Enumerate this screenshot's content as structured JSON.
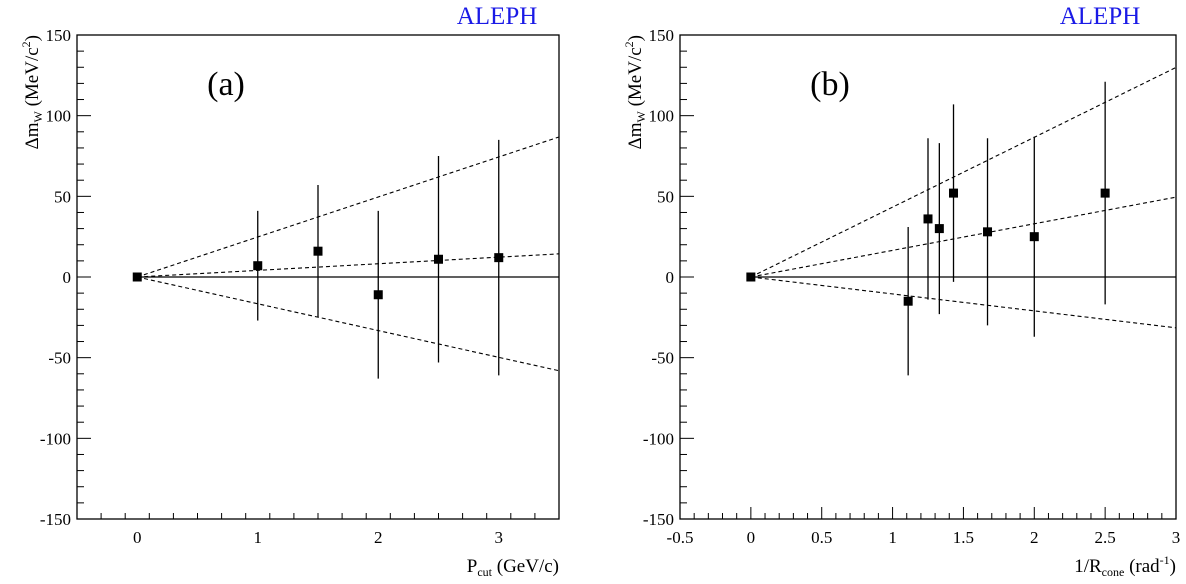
{
  "brand_color": "#1a1ae6",
  "chart_data": [
    {
      "type": "scatter",
      "id": "a",
      "brand": "ALEPH",
      "panel_label": "(a)",
      "ylabel_main": "Δm",
      "ylabel_sub": "W",
      "ylabel_rest": " (MeV/c",
      "ylabel_sup": "2",
      "ylabel_close": ")",
      "xlabel_main": "P",
      "xlabel_sub": "cut",
      "xlabel_rest": " (GeV/c)",
      "xlim": [
        -0.5,
        3.5
      ],
      "ylim": [
        -150,
        150
      ],
      "xticks": [
        0,
        1,
        2,
        3
      ],
      "xtick_labels": [
        "0",
        "1",
        "2",
        "3"
      ],
      "yticks": [
        -150,
        -100,
        -50,
        0,
        50,
        100,
        150
      ],
      "ytick_labels": [
        "-150",
        "-100",
        "-50",
        "0",
        "50",
        "100",
        "150"
      ],
      "grid": false,
      "points": [
        {
          "x": 0,
          "y": 0,
          "err": 0
        },
        {
          "x": 1,
          "y": 7,
          "err": 34
        },
        {
          "x": 1.5,
          "y": 16,
          "err": 41
        },
        {
          "x": 2,
          "y": -11,
          "err": 52
        },
        {
          "x": 2.5,
          "y": 11,
          "err": 64
        },
        {
          "x": 3,
          "y": 12,
          "err": 73
        }
      ],
      "fit_lines": [
        {
          "style": "dashed",
          "slope": 24.8
        },
        {
          "style": "dashed",
          "slope": 4.1
        },
        {
          "style": "dashed",
          "slope": -16.6
        }
      ]
    },
    {
      "type": "scatter",
      "id": "b",
      "brand": "ALEPH",
      "panel_label": "(b)",
      "ylabel_main": "Δm",
      "ylabel_sub": "W",
      "ylabel_rest": " (MeV/c",
      "ylabel_sup": "2",
      "ylabel_close": ")",
      "xlabel_main": "1/R",
      "xlabel_sub": "cone",
      "xlabel_rest": " (rad",
      "xlabel_sup": "-1",
      "xlabel_close": ")",
      "xlim": [
        -0.5,
        3
      ],
      "ylim": [
        -150,
        150
      ],
      "xticks": [
        -0.5,
        0,
        0.5,
        1,
        1.5,
        2,
        2.5,
        3
      ],
      "xtick_labels": [
        "-0.5",
        "0",
        "0.5",
        "1",
        "1.5",
        "2",
        "2.5",
        "3"
      ],
      "yticks": [
        -150,
        -100,
        -50,
        0,
        50,
        100,
        150
      ],
      "ytick_labels": [
        "-150",
        "-100",
        "-50",
        "0",
        "50",
        "100",
        "150"
      ],
      "grid": false,
      "points": [
        {
          "x": 0,
          "y": 0,
          "err": 0
        },
        {
          "x": 1.11,
          "y": -15,
          "err": 46
        },
        {
          "x": 1.25,
          "y": 36,
          "err": 50
        },
        {
          "x": 1.33,
          "y": 30,
          "err": 53
        },
        {
          "x": 1.43,
          "y": 52,
          "err": 55
        },
        {
          "x": 1.67,
          "y": 28,
          "err": 58
        },
        {
          "x": 2,
          "y": 25,
          "err": 62
        },
        {
          "x": 2.5,
          "y": 52,
          "err": 69
        }
      ],
      "fit_lines": [
        {
          "style": "dashed",
          "slope": 43.3
        },
        {
          "style": "dashed",
          "slope": 16.5
        },
        {
          "style": "dashed",
          "slope": -10.5
        }
      ]
    }
  ]
}
